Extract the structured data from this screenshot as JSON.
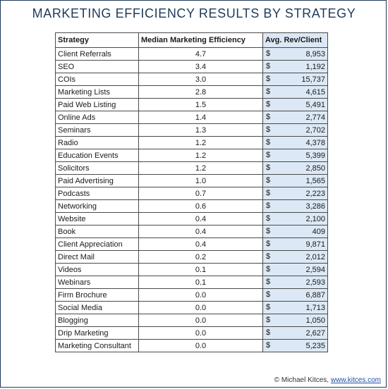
{
  "title": "MARKETING EFFICIENCY RESULTS BY STRATEGY",
  "table": {
    "headers": [
      "Strategy",
      "Median Marketing Efficiency",
      "Avg. Rev/Client"
    ],
    "currency_symbol": "$",
    "rows": [
      {
        "strategy": "Client Referrals",
        "efficiency": "4.7",
        "revenue": "8,953"
      },
      {
        "strategy": "SEO",
        "efficiency": "3.4",
        "revenue": "1,192"
      },
      {
        "strategy": "COIs",
        "efficiency": "3.0",
        "revenue": "15,737"
      },
      {
        "strategy": "Marketing Lists",
        "efficiency": "2.8",
        "revenue": "4,615"
      },
      {
        "strategy": "Paid Web Listing",
        "efficiency": "1.5",
        "revenue": "5,491"
      },
      {
        "strategy": "Online Ads",
        "efficiency": "1.4",
        "revenue": "2,774"
      },
      {
        "strategy": "Seminars",
        "efficiency": "1.3",
        "revenue": "2,702"
      },
      {
        "strategy": "Radio",
        "efficiency": "1.2",
        "revenue": "4,378"
      },
      {
        "strategy": "Education Events",
        "efficiency": "1.2",
        "revenue": "5,399"
      },
      {
        "strategy": "Solicitors",
        "efficiency": "1.2",
        "revenue": "2,850"
      },
      {
        "strategy": "Paid Advertising",
        "efficiency": "1.0",
        "revenue": "1,565"
      },
      {
        "strategy": "Podcasts",
        "efficiency": "0.7",
        "revenue": "2,223"
      },
      {
        "strategy": "Networking",
        "efficiency": "0.6",
        "revenue": "3,286"
      },
      {
        "strategy": "Website",
        "efficiency": "0.4",
        "revenue": "2,100"
      },
      {
        "strategy": "Book",
        "efficiency": "0.4",
        "revenue": "409"
      },
      {
        "strategy": "Client Appreciation",
        "efficiency": "0.4",
        "revenue": "9,871"
      },
      {
        "strategy": "Direct Mail",
        "efficiency": "0.2",
        "revenue": "2,012"
      },
      {
        "strategy": "Videos",
        "efficiency": "0.1",
        "revenue": "2,594"
      },
      {
        "strategy": "Webinars",
        "efficiency": "0.1",
        "revenue": "2,593"
      },
      {
        "strategy": "Firm Brochure",
        "efficiency": "0.0",
        "revenue": "6,887"
      },
      {
        "strategy": "Social Media",
        "efficiency": "0.0",
        "revenue": "1,713"
      },
      {
        "strategy": "Blogging",
        "efficiency": "0.0",
        "revenue": "1,050"
      },
      {
        "strategy": "Drip Marketing",
        "efficiency": "0.0",
        "revenue": "2,627"
      },
      {
        "strategy": "Marketing Consultant",
        "efficiency": "0.0",
        "revenue": "5,235"
      }
    ]
  },
  "credit": {
    "author": "© Michael Kitces,",
    "link_text": "www.kitces.com"
  },
  "colors": {
    "title": "#1f3a5a",
    "revenue_column_bg": "#dce8f5",
    "link": "#1f4fa8"
  }
}
